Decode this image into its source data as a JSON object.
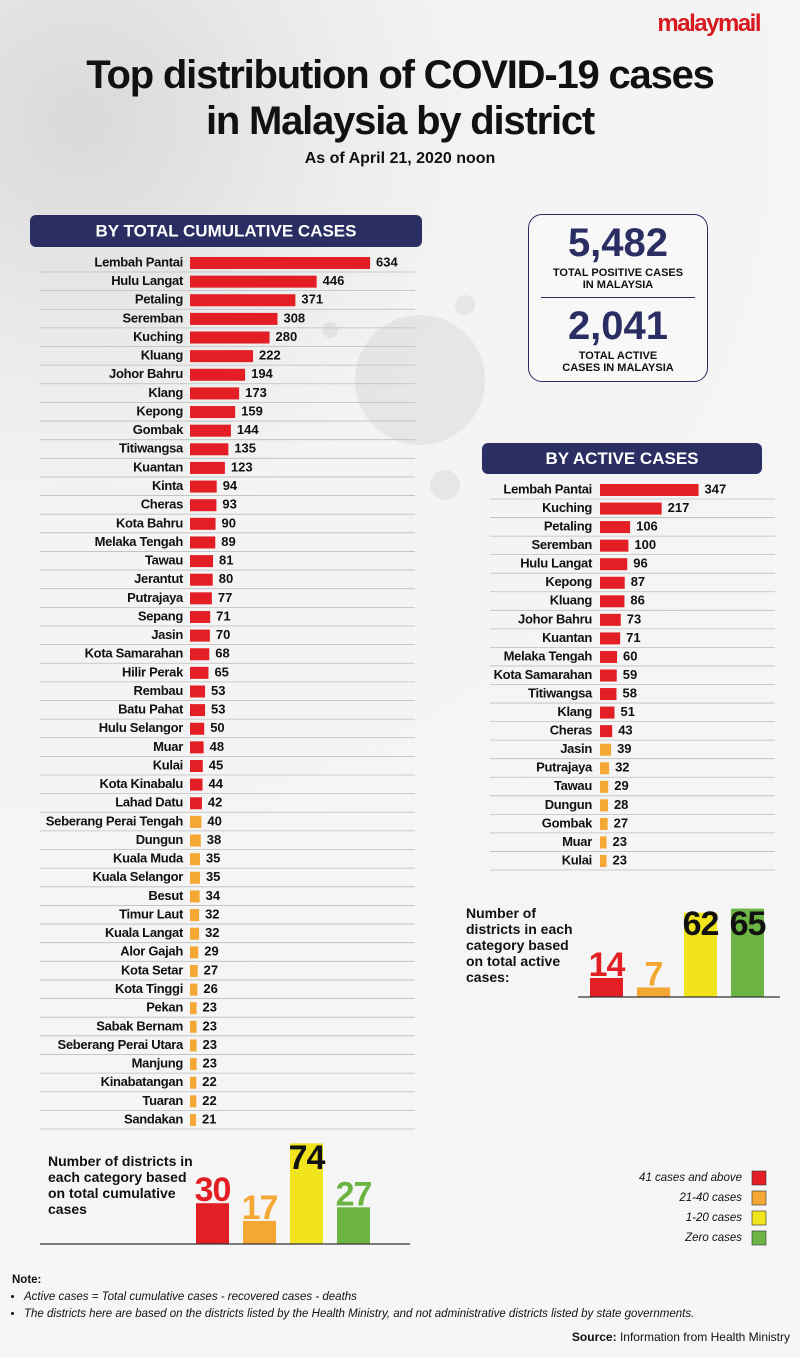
{
  "brand": "malaymail",
  "header": {
    "title": "Top distribution of COVID-19 cases in Malaysia by district",
    "subtitle": "As of April 21, 2020 noon"
  },
  "stats": [
    {
      "value": "5,482",
      "label": "TOTAL POSITIVE CASES IN MALAYSIA"
    },
    {
      "value": "2,041",
      "label": "TOTAL ACTIVE CASES IN MALAYSIA"
    }
  ],
  "chart_data": [
    {
      "type": "hbar",
      "title": "BY TOTAL CUMULATIVE CASES",
      "categories": [
        "Lembah Pantai",
        "Hulu Langat",
        "Petaling",
        "Seremban",
        "Kuching",
        "Kluang",
        "Johor Bahru",
        "Klang",
        "Kepong",
        "Gombak",
        "Titiwangsa",
        "Kuantan",
        "Kinta",
        "Cheras",
        "Kota Bahru",
        "Melaka Tengah",
        "Tawau",
        "Jerantut",
        "Putrajaya",
        "Sepang",
        "Jasin",
        "Kota Samarahan",
        "Hilir Perak",
        "Rembau",
        "Batu Pahat",
        "Hulu Selangor",
        "Muar",
        "Kulai",
        "Kota Kinabalu",
        "Lahad Datu",
        "Seberang Perai Tengah",
        "Dungun",
        "Kuala Muda",
        "Kuala Selangor",
        "Besut",
        "Timur Laut",
        "Kuala Langat",
        "Alor Gajah",
        "Kota Setar",
        "Kota Tinggi",
        "Pekan",
        "Sabak Bernam",
        "Seberang Perai Utara",
        "Manjung",
        "Kinabatangan",
        "Tuaran",
        "Sandakan"
      ],
      "values": [
        634,
        446,
        371,
        308,
        280,
        222,
        194,
        173,
        159,
        144,
        135,
        123,
        94,
        93,
        90,
        89,
        81,
        80,
        77,
        71,
        70,
        68,
        65,
        53,
        53,
        50,
        48,
        45,
        44,
        42,
        40,
        38,
        35,
        35,
        34,
        32,
        32,
        29,
        27,
        26,
        23,
        23,
        23,
        23,
        22,
        22,
        21
      ],
      "colors": [
        "#e31e24",
        "#e31e24",
        "#e31e24",
        "#e31e24",
        "#e31e24",
        "#e31e24",
        "#e31e24",
        "#e31e24",
        "#e31e24",
        "#e31e24",
        "#e31e24",
        "#e31e24",
        "#e31e24",
        "#e31e24",
        "#e31e24",
        "#e31e24",
        "#e31e24",
        "#e31e24",
        "#e31e24",
        "#e31e24",
        "#e31e24",
        "#e31e24",
        "#e31e24",
        "#e31e24",
        "#e31e24",
        "#e31e24",
        "#e31e24",
        "#e31e24",
        "#e31e24",
        "#e31e24",
        "#f5a733",
        "#f5a733",
        "#f5a733",
        "#f5a733",
        "#f5a733",
        "#f5a733",
        "#f5a733",
        "#f5a733",
        "#f5a733",
        "#f5a733",
        "#f5a733",
        "#f5a733",
        "#f5a733",
        "#f5a733",
        "#f5a733",
        "#f5a733",
        "#f5a733"
      ]
    },
    {
      "type": "hbar",
      "title": "BY ACTIVE CASES",
      "categories": [
        "Lembah Pantai",
        "Kuching",
        "Petaling",
        "Seremban",
        "Hulu Langat",
        "Kepong",
        "Kluang",
        "Johor Bahru",
        "Kuantan",
        "Melaka Tengah",
        "Kota Samarahan",
        "Titiwangsa",
        "Klang",
        "Cheras",
        "Jasin",
        "Putrajaya",
        "Tawau",
        "Dungun",
        "Gombak",
        "Muar",
        "Kulai"
      ],
      "values": [
        347,
        217,
        106,
        100,
        96,
        87,
        86,
        73,
        71,
        60,
        59,
        58,
        51,
        43,
        39,
        32,
        29,
        28,
        27,
        23,
        23
      ],
      "colors": [
        "#e31e24",
        "#e31e24",
        "#e31e24",
        "#e31e24",
        "#e31e24",
        "#e31e24",
        "#e31e24",
        "#e31e24",
        "#e31e24",
        "#e31e24",
        "#e31e24",
        "#e31e24",
        "#e31e24",
        "#e31e24",
        "#f5a733",
        "#f5a733",
        "#f5a733",
        "#f5a733",
        "#f5a733",
        "#f5a733",
        "#f5a733"
      ]
    },
    {
      "type": "bar",
      "title": "Number of districts in each category based on total active cases:",
      "values": [
        14,
        7,
        62,
        65
      ],
      "colors": [
        "#e31e24",
        "#f5a733",
        "#f2e41c",
        "#6cb545"
      ],
      "label_colors": [
        "#e31e24",
        "#f5a733",
        "#111111",
        "#111111"
      ]
    },
    {
      "type": "bar",
      "title": "Number of districts in each category based on total cumulative cases",
      "values": [
        30,
        17,
        74,
        27
      ],
      "colors": [
        "#e31e24",
        "#f5a733",
        "#f2e41c",
        "#6cb545"
      ],
      "label_colors": [
        "#e31e24",
        "#f5a733",
        "#111111",
        "#6cb545"
      ]
    }
  ],
  "legend": [
    {
      "name": "41 cases and above",
      "color": "#e31e24"
    },
    {
      "name": "21-40 cases",
      "color": "#f5a733"
    },
    {
      "name": "1-20 cases",
      "color": "#f2e41c"
    },
    {
      "name": "Zero cases",
      "color": "#6cb545"
    }
  ],
  "notes": {
    "heading": "Note:",
    "items": [
      "Active cases = Total cumulative cases - recovered cases - deaths",
      "The districts here are based on the districts listed by the Health Ministry, and not administrative districts listed by state governments."
    ]
  },
  "source": {
    "heading": "Source:",
    "text": "Information from Health Ministry"
  }
}
